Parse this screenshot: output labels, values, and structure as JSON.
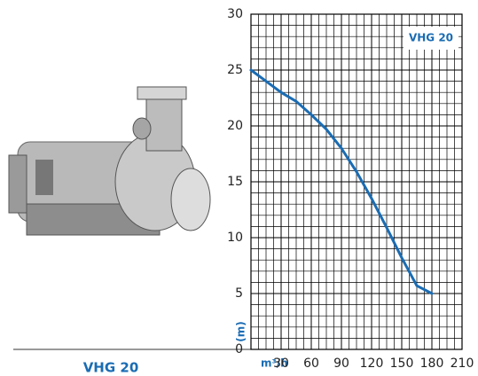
{
  "chart_data": {
    "type": "line",
    "product_label": "VHG 20",
    "xlabel": "m³/h",
    "ylabel": "(m)",
    "x": [
      0,
      15,
      30,
      45,
      60,
      75,
      90,
      105,
      120,
      135,
      150,
      165,
      180
    ],
    "series": [
      {
        "name": "VHG 20",
        "color": "#1a6cb3",
        "values": [
          25,
          24,
          23,
          22.2,
          21,
          19.7,
          18,
          15.9,
          13.5,
          10.9,
          8.2,
          5.7,
          5
        ]
      }
    ],
    "xlim": [
      0,
      210
    ],
    "xticks": [
      30,
      60,
      90,
      120,
      150,
      180,
      210
    ],
    "ylim": [
      0,
      30
    ],
    "yticks": [
      0,
      5,
      10,
      15,
      20,
      25,
      30
    ],
    "grid": true,
    "legend": "top-right"
  }
}
